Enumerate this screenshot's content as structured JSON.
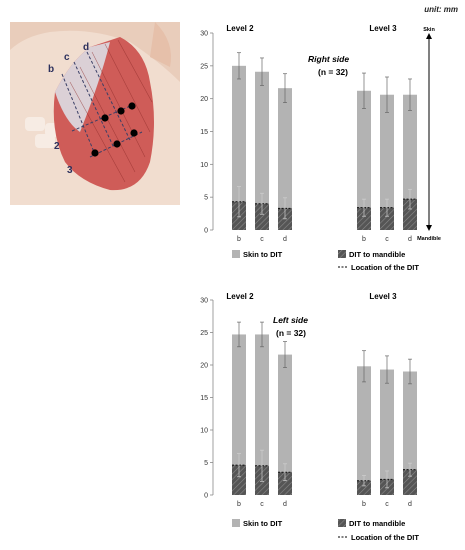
{
  "unit_label": "unit: mm",
  "illustration": {
    "line_labels": [
      "b",
      "c",
      "d"
    ],
    "level_labels": [
      "2",
      "3"
    ]
  },
  "colors": {
    "skin_to_dit": "#b3b3b3",
    "dit_to_mandible": "#555555",
    "axis": "#888888",
    "muscle": "#d9534f"
  },
  "legend": {
    "skin_to_dit": "Skin to DIT",
    "dit_to_mandible": "DIT to mandible",
    "location": "Location of the DIT"
  },
  "arrow": {
    "top_label": "Skin",
    "bottom_label": "Mandible"
  },
  "chart_data": [
    {
      "type": "bar",
      "stacked": true,
      "title": "Right side",
      "n_label": "(n = 32)",
      "groups": [
        "Level 2",
        "Level 3"
      ],
      "categories": [
        "b",
        "c",
        "d"
      ],
      "ylim": [
        0,
        30
      ],
      "yticks": [
        0,
        5,
        10,
        15,
        20,
        25,
        30
      ],
      "grid": false,
      "series": [
        {
          "name": "DIT to mandible",
          "values": [
            [
              4.3,
              4.0,
              3.3
            ],
            [
              3.4,
              3.4,
              4.7
            ]
          ],
          "error": [
            [
              2.3,
              1.6,
              1.6
            ],
            [
              1.3,
              1.3,
              1.5
            ]
          ]
        },
        {
          "name": "Skin to DIT",
          "values": [
            [
              25.0,
              24.1,
              21.6
            ],
            [
              21.2,
              20.6,
              20.6
            ]
          ],
          "error": [
            [
              2.0,
              2.1,
              2.2
            ],
            [
              2.7,
              2.7,
              2.4
            ]
          ]
        }
      ]
    },
    {
      "type": "bar",
      "stacked": true,
      "title": "Left side",
      "n_label": "(n = 32)",
      "groups": [
        "Level 2",
        "Level 3"
      ],
      "categories": [
        "b",
        "c",
        "d"
      ],
      "ylim": [
        0,
        30
      ],
      "yticks": [
        0,
        5,
        10,
        15,
        20,
        25,
        30
      ],
      "grid": false,
      "series": [
        {
          "name": "DIT to mandible",
          "values": [
            [
              4.6,
              4.5,
              3.5
            ],
            [
              2.2,
              2.4,
              3.9
            ]
          ],
          "error": [
            [
              1.8,
              2.4,
              1.3
            ],
            [
              0.8,
              1.3,
              1.0
            ]
          ]
        },
        {
          "name": "Skin to DIT",
          "values": [
            [
              24.7,
              24.7,
              21.6
            ],
            [
              19.8,
              19.3,
              19.0
            ]
          ],
          "error": [
            [
              1.9,
              1.9,
              2.0
            ],
            [
              2.4,
              2.1,
              1.9
            ]
          ]
        }
      ]
    }
  ]
}
